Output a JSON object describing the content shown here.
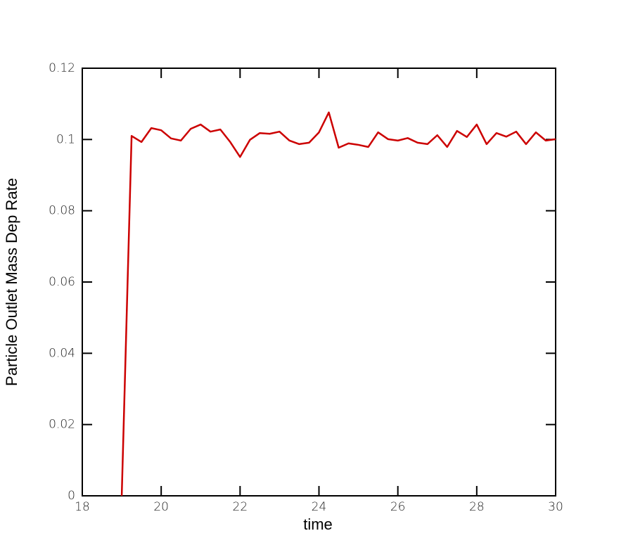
{
  "chart_data": {
    "type": "line",
    "x_label": "time",
    "y_label": "Particle Outlet Mass Dep Rate",
    "xlim": [
      18,
      30
    ],
    "xticks": [
      18,
      20,
      22,
      24,
      26,
      28,
      30
    ],
    "ylim": [
      0,
      0.12
    ],
    "yticks": [
      0,
      0.02,
      0.04,
      0.06,
      0.08,
      0.1,
      0.12
    ],
    "x": [
      19,
      19.25,
      19.5,
      19.75,
      20,
      20.25,
      20.5,
      20.75,
      21,
      21.25,
      21.5,
      21.75,
      22,
      22.25,
      22.5,
      22.75,
      23,
      23.25,
      23.5,
      23.75,
      24,
      24.25,
      24.5,
      24.75,
      25,
      25.25,
      25.5,
      25.75,
      26,
      26.25,
      26.5,
      26.75,
      27,
      27.25,
      27.5,
      27.75,
      28,
      28.25,
      28.5,
      28.75,
      29,
      29.25,
      29.5,
      29.75,
      30
    ],
    "series": [
      {
        "color": "#cc0000",
        "values": [
          0,
          0.101,
          0.0993,
          0.1032,
          0.1026,
          0.1003,
          0.0997,
          0.103,
          0.1042,
          0.1022,
          0.1028,
          0.0993,
          0.0951,
          0.0999,
          0.1018,
          0.1016,
          0.1022,
          0.0997,
          0.0987,
          0.0991,
          0.102,
          0.1076,
          0.0977,
          0.0989,
          0.0985,
          0.0979,
          0.102,
          0.1001,
          0.0997,
          0.1004,
          0.0991,
          0.0987,
          0.1012,
          0.0979,
          0.1024,
          0.1007,
          0.1042,
          0.0987,
          0.1018,
          0.1008,
          0.1022,
          0.0987,
          0.102,
          0.0997,
          0.1001
        ]
      }
    ]
  }
}
